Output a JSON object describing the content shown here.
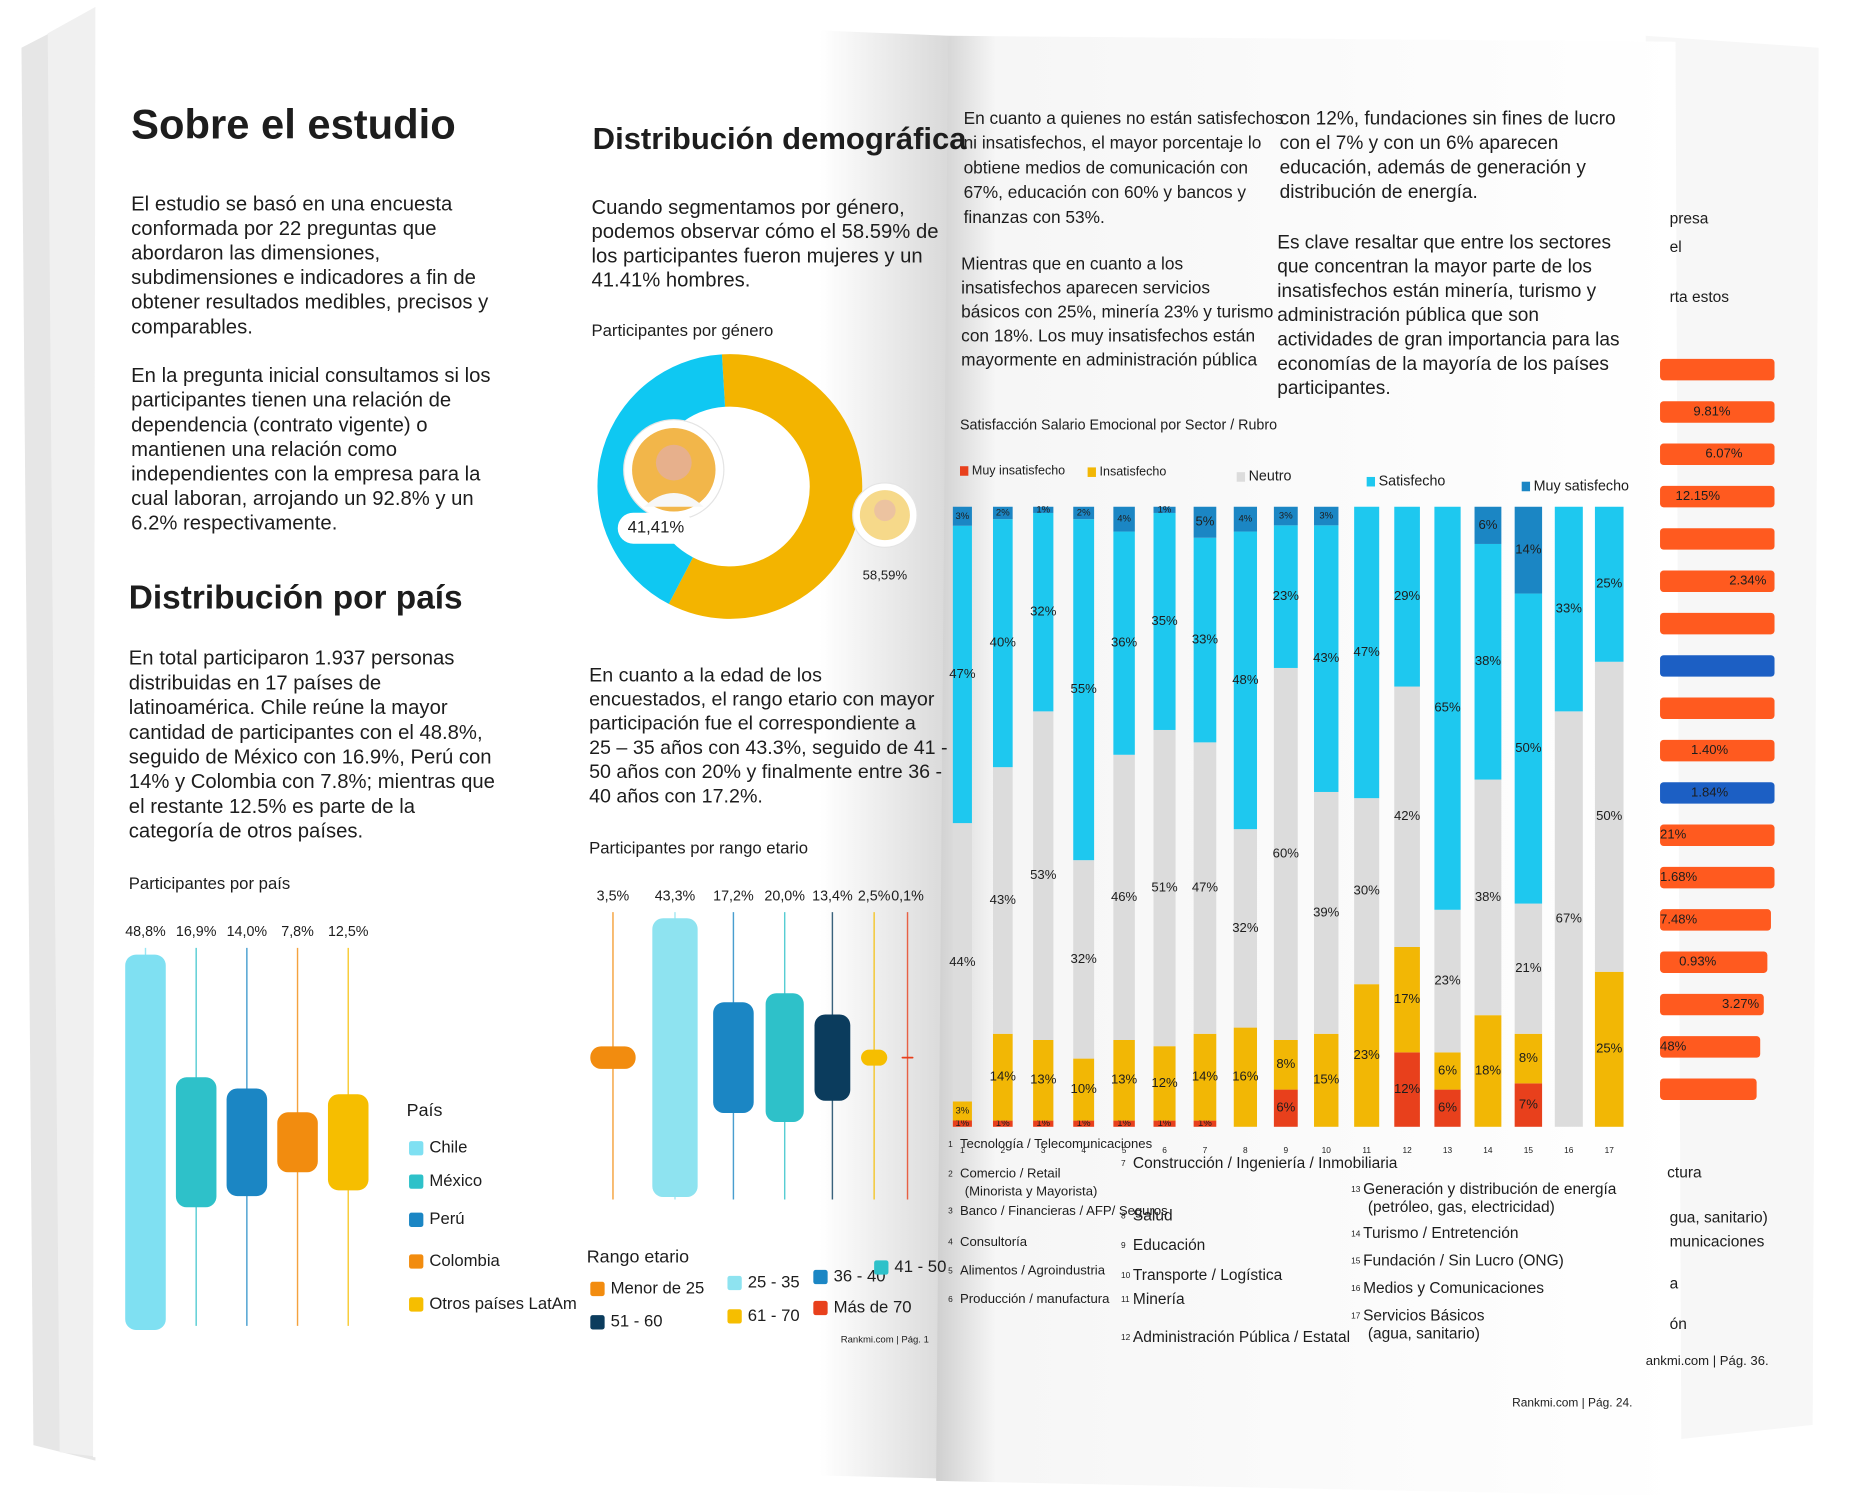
{
  "left_page": {
    "title": "Sobre el estudio",
    "paragraphs": [
      [
        "El estudio se basó en una encuesta",
        "conformada por 22 preguntas que",
        "abordaron las dimensiones,",
        "subdimensiones e indicadores a fin de",
        "obtener resultados medibles, precisos y",
        "comparables."
      ],
      [
        "En la pregunta inicial consultamos si los",
        "participantes tienen una relación de",
        "dependencia (contrato vigente) o",
        "mantienen una relación como",
        "independientes con la empresa para la",
        "cual laboran, arrojando un 92.8% y un",
        "6.2% respectivamente."
      ]
    ],
    "section_title": "Distribución por país",
    "section_paragraph": [
      "En total participaron 1.937 personas",
      "distribuidas en 17 países de",
      "latinoamérica. Chile reúne la mayor",
      "cantidad de participantes con el 48.8%,",
      "seguido de México con 16.9%, Perú con",
      "14% y Colombia con 7.8%; mientras que",
      "el restante 12.5% es parte de la",
      "categoría de otros países."
    ],
    "footer": "Rankmi.com | Pág. 1"
  },
  "demographics": {
    "title": "Distribución demográfica",
    "paragraph": [
      "Cuando segmentamos por género,",
      "podemos observar cómo el 58.59% de",
      "los participantes fueron mujeres y un",
      "41.41% hombres."
    ],
    "age_paragraph": [
      "En cuanto a la edad de los",
      "encuestados, el rango etario con mayor",
      "participación fue el correspondiente a",
      "25 – 35 años con 43.3%, seguido de 41 -",
      "50 años con 20% y finalmente entre 36 -",
      "40 años con 17.2%."
    ]
  },
  "right_page": {
    "column1": [
      [
        "En cuanto a quienes no están satisfechos",
        "ni insatisfechos, el mayor porcentaje lo",
        "obtiene medios de comunicación con",
        "67%, educación con 60% y bancos y",
        "finanzas con 53%."
      ],
      [
        "Mientras que en cuanto a los",
        "insatisfechos aparecen servicios",
        "básicos con 25%, minería 23% y turismo",
        "con 18%. Los muy insatisfechos están",
        "mayormente en administración pública"
      ]
    ],
    "column2": [
      [
        "con 12%, fundaciones sin fines de lucro",
        "con el 7% y con un 6% aparecen",
        "educación, además de generación y",
        "distribución de energía."
      ],
      [
        "Es clave resaltar que entre los sectores",
        "que concentran la mayor parte de los",
        "insatisfechos están minería, turismo y",
        "administración pública que son",
        "actividades de gran importancia para las",
        "economías de la mayoría de los países",
        "participantes."
      ]
    ],
    "sectors": [
      "Tecnología / Telecomunicaciones",
      "Comercio / Retail (Minorista y Mayorista)",
      "Banco / Financieras / AFP/ Seguros",
      "Consultoría",
      "Alimentos / Agroindustria",
      "Producción / manufactura",
      "Construcción / Ingeniería / Inmobiliaria",
      "Salud",
      "Educación",
      "Transporte / Logística",
      "Minería",
      "Administración Pública / Estatal",
      "Generación y distribución de energía (petróleo, gas, electricidad)",
      "Turismo / Entretención",
      "Fundación /  Sin Lucro (ONG)",
      "Medios y Comunicaciones",
      "Servicios Básicos (agua, sanitario)"
    ],
    "footer": "Rankmi.com | Pág. 24."
  },
  "side_page": {
    "texts": [
      "presa",
      "el",
      "rta estos",
      "ctura",
      "gua, sanitario)",
      "municaciones",
      "a",
      "ón",
      "ankmi.com | Pág. 36."
    ],
    "bar_labels": [
      "9.81%",
      "6.07%",
      "12.15%",
      "2.34%",
      "1.40%",
      "1.84%",
      "21%",
      "1.68%",
      "7.48%",
      "0.93%",
      "3.27%",
      "48%"
    ]
  },
  "chart_data": [
    {
      "type": "bar",
      "title": "Participantes por país",
      "legend_title": "País",
      "categories": [
        "Chile",
        "México",
        "Perú",
        "Colombia",
        "Otros países LatAm"
      ],
      "values": [
        48.8,
        16.9,
        14.0,
        7.8,
        12.5
      ],
      "value_labels": [
        "48,8%",
        "16,9%",
        "14,0%",
        "7,8%",
        "12,5%"
      ],
      "colors": [
        "#7fe0f2",
        "#2ec1c9",
        "#1b86c4",
        "#f28c0f",
        "#f6be00"
      ]
    },
    {
      "type": "pie",
      "title": "Participantes por género",
      "values": [
        41.41,
        58.59
      ],
      "value_labels": [
        "41,41%",
        "58,59%"
      ],
      "colors": [
        "#0fc8f2",
        "#f3b400"
      ]
    },
    {
      "type": "bar",
      "title": "Participantes por rango etario",
      "legend_title": "Rango etario",
      "categories": [
        "Menor de 25",
        "25 - 35",
        "36 - 40",
        "41 - 50",
        "51 - 60",
        "61 - 70",
        "Más de 70"
      ],
      "values": [
        3.5,
        43.3,
        17.2,
        20.0,
        13.4,
        2.5,
        0.1
      ],
      "value_labels": [
        "3,5%",
        "43,3%",
        "17,2%",
        "20,0%",
        "13,4%",
        "2,5%",
        "0,1%"
      ],
      "colors": [
        "#f28c0f",
        "#8ee3f0",
        "#1b86c4",
        "#2ec1c9",
        "#0b3c5d",
        "#f6be00",
        "#e8401c"
      ]
    },
    {
      "type": "stacked_bar",
      "title": "Satisfacción Salario Emocional por Sector / Rubro",
      "categories": [
        "1",
        "2",
        "3",
        "4",
        "5",
        "6",
        "7",
        "8",
        "9",
        "10",
        "11",
        "12",
        "13",
        "14",
        "15",
        "16",
        "17"
      ],
      "series": [
        {
          "name": "Muy insatisfecho",
          "color": "#e8401c",
          "values": [
            1,
            1,
            1,
            1,
            1,
            1,
            1,
            0,
            6,
            0,
            0,
            12,
            6,
            0,
            7,
            0,
            0
          ],
          "value_labels": [
            "1%",
            "1%",
            "1%",
            "1%",
            "1%",
            "1%",
            "1%",
            null,
            "6%",
            null,
            null,
            "12%",
            "6%",
            null,
            "7%",
            null,
            null
          ]
        },
        {
          "name": "Insatisfecho",
          "color": "#f2b705",
          "values": [
            3,
            14,
            13,
            10,
            13,
            12,
            14,
            16,
            8,
            15,
            23,
            17,
            6,
            18,
            8,
            0,
            25
          ],
          "value_labels": [
            "3%",
            "14%",
            "13%",
            "10%",
            "13%",
            "12%",
            "14%",
            "16%",
            "8%",
            "15%",
            "23%",
            "17%",
            "6%",
            "18%",
            "8%",
            null,
            "25%"
          ]
        },
        {
          "name": "Neutro",
          "color": "#dcdcdc",
          "values": [
            44,
            43,
            53,
            32,
            46,
            51,
            47,
            32,
            60,
            39,
            30,
            42,
            23,
            38,
            21,
            67,
            50
          ],
          "value_labels": [
            "44%",
            "43%",
            "53%",
            "32%",
            "46%",
            "51%",
            "47%",
            "32%",
            "60%",
            "39%",
            "30%",
            "42%",
            "23%",
            "38%",
            "21%",
            "67%",
            "50%"
          ]
        },
        {
          "name": "Satisfecho",
          "color": "#1ec8ef",
          "values": [
            47,
            40,
            32,
            55,
            36,
            35,
            33,
            48,
            23,
            43,
            47,
            29,
            65,
            38,
            50,
            33,
            25
          ],
          "value_labels": [
            "47%",
            "40%",
            "32%",
            "55%",
            "36%",
            "35%",
            "33%",
            "48%",
            "23%",
            "43%",
            "47%",
            "29%",
            "65%",
            "38%",
            "50%",
            "33%",
            "25%"
          ]
        },
        {
          "name": "Muy satisfecho",
          "color": "#1b86c4",
          "values": [
            3,
            2,
            1,
            2,
            4,
            1,
            5,
            4,
            3,
            3,
            0,
            0,
            0,
            6,
            14,
            0,
            0
          ],
          "value_labels": [
            "3%",
            "2%",
            "1%",
            "2%",
            "4%",
            "1%",
            "5%",
            "4%",
            "3%",
            "3%",
            null,
            null,
            null,
            "6%",
            "14%",
            null,
            null
          ]
        }
      ]
    }
  ]
}
